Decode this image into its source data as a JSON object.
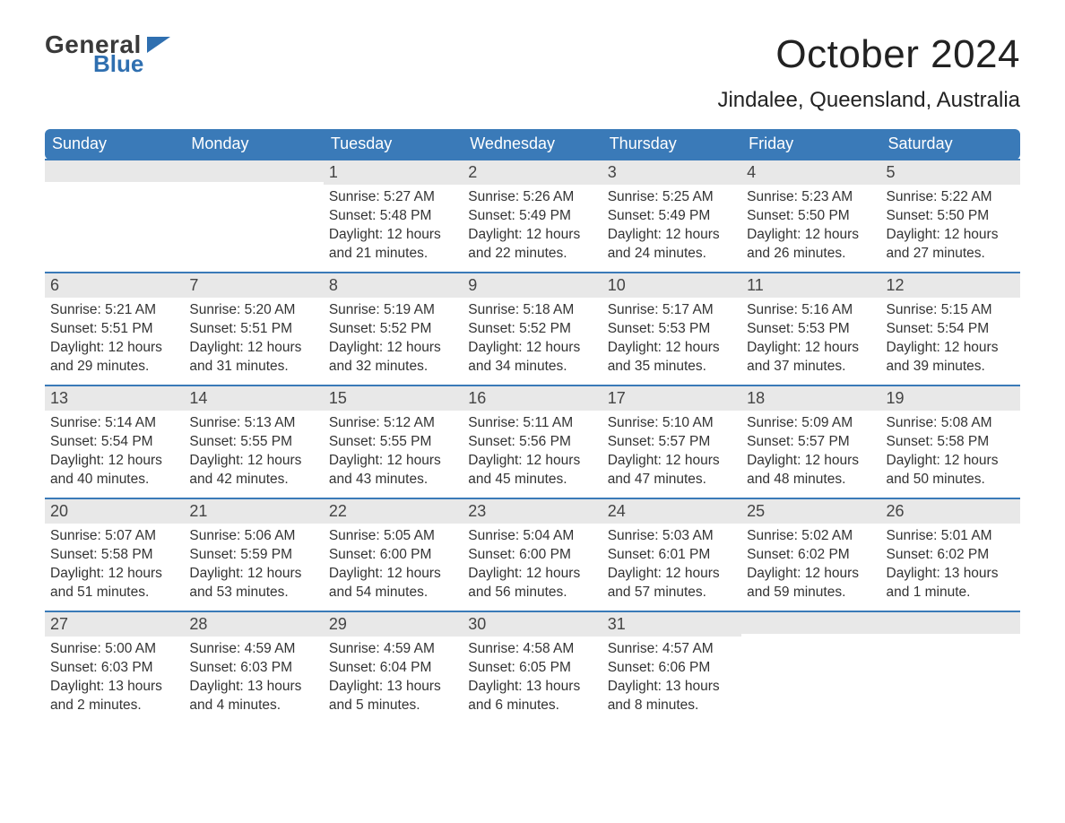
{
  "logo": {
    "word1": "General",
    "word2": "Blue"
  },
  "title": "October 2024",
  "location": "Jindalee, Queensland, Australia",
  "colors": {
    "header_bg": "#3a7ab8",
    "header_text": "#ffffff",
    "daynum_bg": "#e8e8e8",
    "row_border": "#3a7ab8",
    "page_bg": "#ffffff",
    "text": "#333333",
    "logo_blue": "#2f6fb0"
  },
  "day_names": [
    "Sunday",
    "Monday",
    "Tuesday",
    "Wednesday",
    "Thursday",
    "Friday",
    "Saturday"
  ],
  "weeks": [
    [
      null,
      null,
      {
        "n": "1",
        "sunrise": "5:27 AM",
        "sunset": "5:48 PM",
        "daylight": "12 hours and 21 minutes."
      },
      {
        "n": "2",
        "sunrise": "5:26 AM",
        "sunset": "5:49 PM",
        "daylight": "12 hours and 22 minutes."
      },
      {
        "n": "3",
        "sunrise": "5:25 AM",
        "sunset": "5:49 PM",
        "daylight": "12 hours and 24 minutes."
      },
      {
        "n": "4",
        "sunrise": "5:23 AM",
        "sunset": "5:50 PM",
        "daylight": "12 hours and 26 minutes."
      },
      {
        "n": "5",
        "sunrise": "5:22 AM",
        "sunset": "5:50 PM",
        "daylight": "12 hours and 27 minutes."
      }
    ],
    [
      {
        "n": "6",
        "sunrise": "5:21 AM",
        "sunset": "5:51 PM",
        "daylight": "12 hours and 29 minutes."
      },
      {
        "n": "7",
        "sunrise": "5:20 AM",
        "sunset": "5:51 PM",
        "daylight": "12 hours and 31 minutes."
      },
      {
        "n": "8",
        "sunrise": "5:19 AM",
        "sunset": "5:52 PM",
        "daylight": "12 hours and 32 minutes."
      },
      {
        "n": "9",
        "sunrise": "5:18 AM",
        "sunset": "5:52 PM",
        "daylight": "12 hours and 34 minutes."
      },
      {
        "n": "10",
        "sunrise": "5:17 AM",
        "sunset": "5:53 PM",
        "daylight": "12 hours and 35 minutes."
      },
      {
        "n": "11",
        "sunrise": "5:16 AM",
        "sunset": "5:53 PM",
        "daylight": "12 hours and 37 minutes."
      },
      {
        "n": "12",
        "sunrise": "5:15 AM",
        "sunset": "5:54 PM",
        "daylight": "12 hours and 39 minutes."
      }
    ],
    [
      {
        "n": "13",
        "sunrise": "5:14 AM",
        "sunset": "5:54 PM",
        "daylight": "12 hours and 40 minutes."
      },
      {
        "n": "14",
        "sunrise": "5:13 AM",
        "sunset": "5:55 PM",
        "daylight": "12 hours and 42 minutes."
      },
      {
        "n": "15",
        "sunrise": "5:12 AM",
        "sunset": "5:55 PM",
        "daylight": "12 hours and 43 minutes."
      },
      {
        "n": "16",
        "sunrise": "5:11 AM",
        "sunset": "5:56 PM",
        "daylight": "12 hours and 45 minutes."
      },
      {
        "n": "17",
        "sunrise": "5:10 AM",
        "sunset": "5:57 PM",
        "daylight": "12 hours and 47 minutes."
      },
      {
        "n": "18",
        "sunrise": "5:09 AM",
        "sunset": "5:57 PM",
        "daylight": "12 hours and 48 minutes."
      },
      {
        "n": "19",
        "sunrise": "5:08 AM",
        "sunset": "5:58 PM",
        "daylight": "12 hours and 50 minutes."
      }
    ],
    [
      {
        "n": "20",
        "sunrise": "5:07 AM",
        "sunset": "5:58 PM",
        "daylight": "12 hours and 51 minutes."
      },
      {
        "n": "21",
        "sunrise": "5:06 AM",
        "sunset": "5:59 PM",
        "daylight": "12 hours and 53 minutes."
      },
      {
        "n": "22",
        "sunrise": "5:05 AM",
        "sunset": "6:00 PM",
        "daylight": "12 hours and 54 minutes."
      },
      {
        "n": "23",
        "sunrise": "5:04 AM",
        "sunset": "6:00 PM",
        "daylight": "12 hours and 56 minutes."
      },
      {
        "n": "24",
        "sunrise": "5:03 AM",
        "sunset": "6:01 PM",
        "daylight": "12 hours and 57 minutes."
      },
      {
        "n": "25",
        "sunrise": "5:02 AM",
        "sunset": "6:02 PM",
        "daylight": "12 hours and 59 minutes."
      },
      {
        "n": "26",
        "sunrise": "5:01 AM",
        "sunset": "6:02 PM",
        "daylight": "13 hours and 1 minute."
      }
    ],
    [
      {
        "n": "27",
        "sunrise": "5:00 AM",
        "sunset": "6:03 PM",
        "daylight": "13 hours and 2 minutes."
      },
      {
        "n": "28",
        "sunrise": "4:59 AM",
        "sunset": "6:03 PM",
        "daylight": "13 hours and 4 minutes."
      },
      {
        "n": "29",
        "sunrise": "4:59 AM",
        "sunset": "6:04 PM",
        "daylight": "13 hours and 5 minutes."
      },
      {
        "n": "30",
        "sunrise": "4:58 AM",
        "sunset": "6:05 PM",
        "daylight": "13 hours and 6 minutes."
      },
      {
        "n": "31",
        "sunrise": "4:57 AM",
        "sunset": "6:06 PM",
        "daylight": "13 hours and 8 minutes."
      },
      null,
      null
    ]
  ],
  "labels": {
    "sunrise": "Sunrise:",
    "sunset": "Sunset:",
    "daylight": "Daylight:"
  }
}
